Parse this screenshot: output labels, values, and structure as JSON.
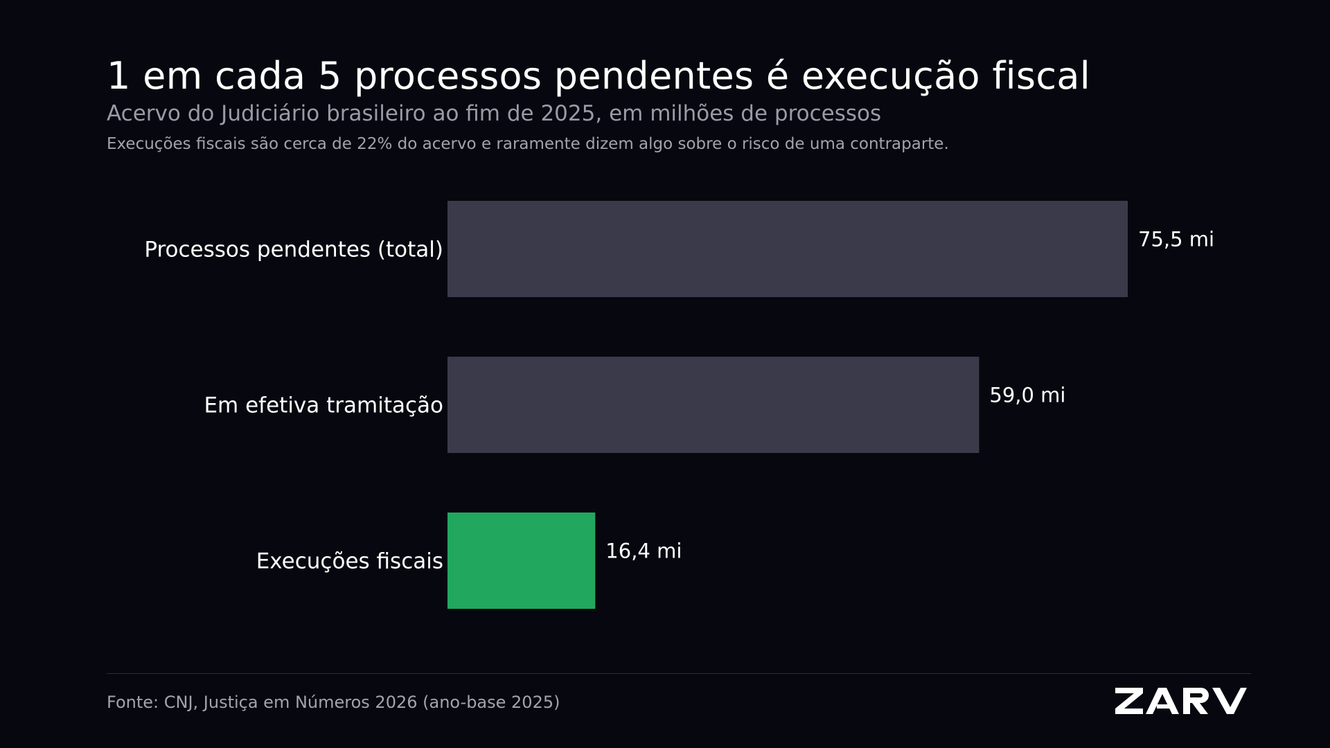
{
  "header": {
    "title": "1 em cada 5 processos pendentes é execução fiscal",
    "subtitle": "Acervo do Judiciário brasileiro ao fim de 2025, em milhões de processos",
    "note": "Execuções fiscais são cerca de 22% do acervo e raramente dizem algo sobre o risco de uma contraparte."
  },
  "footer": {
    "source": "Fonte: CNJ, Justiça em Números 2026 (ano-base 2025)",
    "logo_text": "ZARV"
  },
  "colors": {
    "background": "#07080f",
    "bar_default": "#3b3a4a",
    "bar_highlight": "#22a85e"
  },
  "chart_data": {
    "type": "bar",
    "orientation": "horizontal",
    "categories": [
      "Processos pendentes (total)",
      "Em efetiva tramitação",
      "Execuções fiscais"
    ],
    "values": [
      75.5,
      59.0,
      16.4
    ],
    "value_labels": [
      "75,5 mi",
      "59,0 mi",
      "16,4 mi"
    ],
    "highlight": [
      false,
      false,
      true
    ],
    "unit": "milhões de processos",
    "xlim": [
      0,
      75.5
    ],
    "grid": false,
    "legend": "none"
  }
}
